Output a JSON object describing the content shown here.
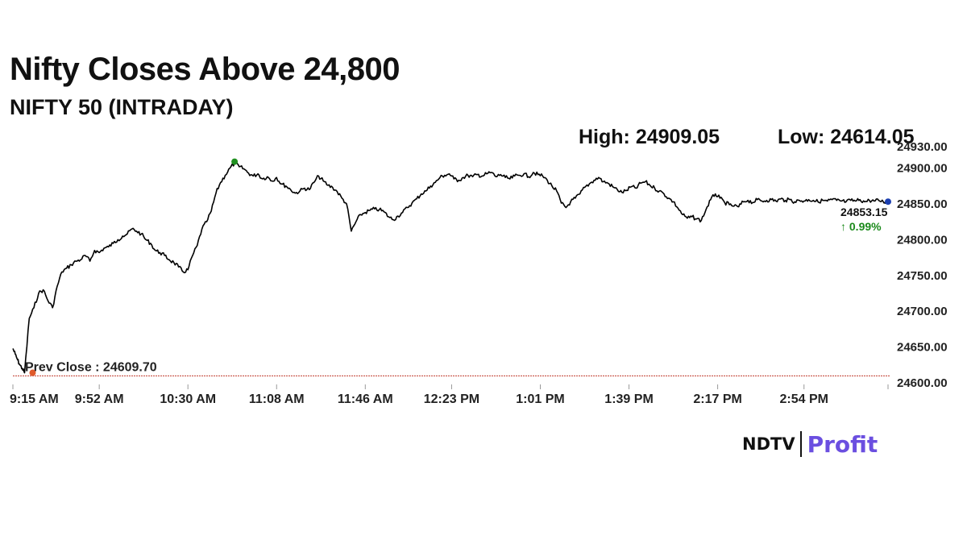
{
  "headline": "Nifty Closes Above 24,800",
  "chart_data": {
    "type": "line",
    "title": "NIFTY 50 (INTRADAY)",
    "high_text": "High: 24909.05",
    "low_text": "Low: 24614.05",
    "high": 24909.05,
    "low": 24614.05,
    "prev_close": 24609.7,
    "prev_close_label": "Prev Close : 24609.70",
    "last_value": 24853.15,
    "last_value_text": "24853.15",
    "change_text": "↑ 0.99%",
    "ylim": [
      24600,
      24930
    ],
    "yticks": [
      24600,
      24650,
      24700,
      24750,
      24800,
      24850,
      24900,
      24930
    ],
    "ytick_labels": [
      "24600.00",
      "24650.00",
      "24700.00",
      "24750.00",
      "24800.00",
      "24850.00",
      "24900.00",
      "24930.00"
    ],
    "x_range_minutes": [
      555,
      930
    ],
    "xtick_labels": [
      "9:15 AM",
      "9:52 AM",
      "10:30 AM",
      "11:08 AM",
      "11:46 AM",
      "12:23 PM",
      "1:01 PM",
      "1:39 PM",
      "2:17 PM",
      "2:54 PM"
    ],
    "xtick_minutes": [
      555,
      592,
      630,
      668,
      706,
      743,
      781,
      819,
      857,
      894
    ],
    "series": [
      {
        "x": [
          555,
          556,
          557,
          558,
          559,
          560,
          562,
          564,
          566,
          568,
          570,
          572,
          574,
          576,
          578,
          580,
          582,
          584,
          586,
          588,
          590,
          592,
          594,
          596,
          598,
          600,
          602,
          604,
          606,
          608,
          610,
          612,
          614,
          616,
          618,
          620,
          622,
          624,
          626,
          628,
          630,
          632,
          634,
          636,
          638,
          640,
          642,
          644,
          646,
          648,
          650,
          652,
          654,
          656,
          658,
          660,
          662,
          664,
          666,
          668,
          670,
          672,
          674,
          676,
          678,
          680,
          682,
          684,
          686,
          688,
          690,
          692,
          694,
          696,
          698,
          700,
          702,
          704,
          706,
          708,
          710,
          712,
          714,
          716,
          718,
          720,
          722,
          724,
          726,
          728,
          730,
          732,
          734,
          736,
          738,
          740,
          742,
          744,
          746,
          748,
          750,
          752,
          754,
          756,
          758,
          760,
          762,
          764,
          766,
          768,
          770,
          772,
          774,
          776,
          778,
          780,
          782,
          784,
          786,
          788,
          790,
          792,
          794,
          796,
          798,
          800,
          802,
          804,
          806,
          808,
          810,
          812,
          814,
          816,
          818,
          820,
          822,
          824,
          826,
          828,
          830,
          832,
          834,
          836,
          838,
          840,
          842,
          844,
          846,
          848,
          850,
          852,
          854,
          856,
          858,
          860,
          862,
          864,
          866,
          868,
          870,
          872,
          874,
          876,
          878,
          880,
          882,
          884,
          886,
          888,
          890,
          892,
          894,
          896,
          898,
          900,
          902,
          904,
          906,
          908,
          910,
          912,
          914,
          916,
          918,
          920,
          922,
          924,
          926,
          928,
          929
        ],
        "values": [
          24648,
          24640,
          24632,
          24625,
          24620,
          24614,
          24690,
          24705,
          24725,
          24730,
          24715,
          24705,
          24735,
          24755,
          24760,
          24765,
          24770,
          24772,
          24778,
          24770,
          24785,
          24782,
          24788,
          24790,
          24795,
          24800,
          24805,
          24808,
          24815,
          24812,
          24808,
          24800,
          24795,
          24785,
          24782,
          24778,
          24772,
          24768,
          24762,
          24755,
          24758,
          24778,
          24792,
          24815,
          24825,
          24840,
          24865,
          24880,
          24890,
          24900,
          24907,
          24902,
          24899,
          24893,
          24889,
          24892,
          24885,
          24888,
          24882,
          24887,
          24878,
          24875,
          24870,
          24865,
          24868,
          24872,
          24870,
          24880,
          24889,
          24882,
          24876,
          24873,
          24867,
          24858,
          24850,
          24812,
          24825,
          24835,
          24838,
          24841,
          24843,
          24842,
          24839,
          24832,
          24828,
          24833,
          24838,
          24845,
          24851,
          24857,
          24864,
          24868,
          24875,
          24880,
          24887,
          24890,
          24892,
          24885,
          24883,
          24887,
          24890,
          24888,
          24891,
          24889,
          24892,
          24894,
          24888,
          24891,
          24887,
          24885,
          24889,
          24890,
          24892,
          24888,
          24894,
          24891,
          24889,
          24883,
          24875,
          24868,
          24851,
          24845,
          24853,
          24858,
          24864,
          24873,
          24878,
          24883,
          24887,
          24881,
          24879,
          24874,
          24870,
          24866,
          24869,
          24874,
          24872,
          24879,
          24881,
          24876,
          24872,
          24868,
          24864,
          24858,
          24853,
          24844,
          24835,
          24830,
          24832,
          24829,
          24827,
          24842,
          24856,
          24864,
          24858,
          24852,
          24849,
          24847,
          24846,
          24853,
          24855,
          24852,
          24856,
          24854,
          24855,
          24856,
          24854,
          24857,
          24855,
          24856,
          24853,
          24855,
          24854,
          24856,
          24855,
          24853,
          24855,
          24854,
          24856,
          24855,
          24854,
          24853,
          24855,
          24854,
          24856,
          24853,
          24855,
          24854,
          24855,
          24853,
          24853
        ]
      }
    ],
    "colors": {
      "line": "#000000",
      "prev_close": "#c0392b",
      "change": "#1b8a1b",
      "high_marker": "#1f8f1f",
      "low_marker": "#e05a2b",
      "last_marker": "#1c3fb0"
    }
  },
  "logo": {
    "ndtv": "NDTV",
    "profit": "Profit"
  }
}
